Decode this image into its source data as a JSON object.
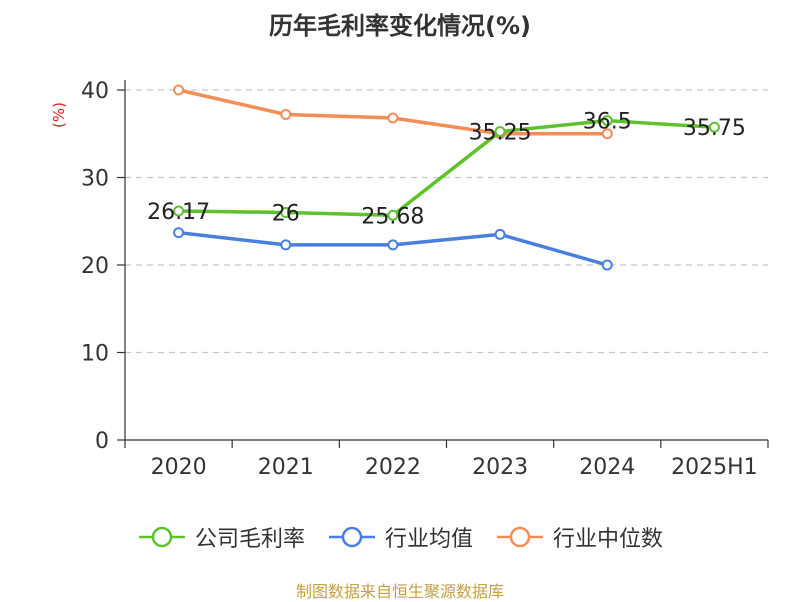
{
  "chart_data": {
    "type": "line",
    "title": "历年毛利率变化情况(%)",
    "ylabel": "(%)",
    "categories": [
      "2020",
      "2021",
      "2022",
      "2023",
      "2024",
      "2025H1"
    ],
    "ylim": [
      0,
      40
    ],
    "yticks": [
      0,
      10,
      20,
      30,
      40
    ],
    "grid": true,
    "legend_position": "bottom",
    "series": [
      {
        "name": "公司毛利率",
        "color": "#5dc22b",
        "values": [
          26.17,
          26.0,
          25.68,
          35.25,
          36.5,
          35.75
        ],
        "labels": [
          "26.17",
          "26",
          "25.68",
          "35.25",
          "36.5",
          "35.75"
        ]
      },
      {
        "name": "行业均值",
        "color": "#4a7fe0",
        "values": [
          23.7,
          22.3,
          22.3,
          23.5,
          20.0,
          null
        ]
      },
      {
        "name": "行业中位数",
        "color": "#f58d58",
        "values": [
          40.0,
          37.2,
          36.8,
          35.0,
          35.0,
          null
        ]
      }
    ]
  },
  "source": "制图数据来自恒生聚源数据库"
}
